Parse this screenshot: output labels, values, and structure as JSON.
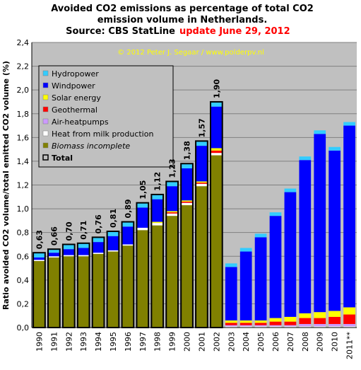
{
  "chart_data": {
    "type": "stacked-bar",
    "title_lines": [
      "Avoided CO2 emissions as percentage of total CO2",
      "emission volume in Netherlands."
    ],
    "source": "Source: CBS StatLine",
    "update": "update June 29, 2012",
    "watermark": "© 2012 Peter J. Segaar / www.polderpv.nl",
    "y_label": "Ratio avoided CO2 volume/total emitted CO2 volume (%)",
    "categories": [
      "1990",
      "1991",
      "1992",
      "1993",
      "1994",
      "1995",
      "1996",
      "1997",
      "1998",
      "1999",
      "2000",
      "2001",
      "2002",
      "2003",
      "2004",
      "2005",
      "2006",
      "2007",
      "2008",
      "2009",
      "2010",
      "2011**"
    ],
    "ylim": [
      0,
      2.4
    ],
    "yticks": [
      {
        "value": 0,
        "label": "0,0"
      },
      {
        "value": 0.2,
        "label": "0,2"
      },
      {
        "value": 0.4,
        "label": "0,4"
      },
      {
        "value": 0.6,
        "label": "0,6"
      },
      {
        "value": 0.8,
        "label": "0,8"
      },
      {
        "value": 1,
        "label": "1,0"
      },
      {
        "value": 1.2,
        "label": "1,2"
      },
      {
        "value": 1.4,
        "label": "1,4"
      },
      {
        "value": 1.6,
        "label": "1,6"
      },
      {
        "value": 1.8,
        "label": "1,8"
      },
      {
        "value": 2,
        "label": "2,0"
      },
      {
        "value": 2.2,
        "label": "2,2"
      },
      {
        "value": 2.4,
        "label": "2,4"
      }
    ],
    "grid": true,
    "series": [
      {
        "name": "Biomass incomplete",
        "color": "#808000",
        "values": [
          0.56,
          0.59,
          0.6,
          0.6,
          0.62,
          0.64,
          0.69,
          0.82,
          0.86,
          0.94,
          1.03,
          1.19,
          1.45,
          0,
          0,
          0,
          0,
          0,
          0,
          0,
          0,
          0
        ]
      },
      {
        "name": "Heat from milk production",
        "color": "#ffffff",
        "values": [
          0.01,
          0.01,
          0.01,
          0.01,
          0.01,
          0.01,
          0.01,
          0.02,
          0.02,
          0.02,
          0.02,
          0.02,
          0.02,
          0.01,
          0.01,
          0.01,
          0.01,
          0.01,
          0.01,
          0.01,
          0.01,
          0.01
        ]
      },
      {
        "name": "Air-heatpumps",
        "color": "#cc99ff",
        "values": [
          0,
          0,
          0,
          0,
          0,
          0,
          0,
          0,
          0,
          0,
          0,
          0,
          0,
          0.01,
          0.01,
          0.01,
          0.01,
          0.01,
          0.02,
          0.02,
          0.02,
          0.02
        ]
      },
      {
        "name": "Geothermal",
        "color": "#ff0000",
        "values": [
          0,
          0,
          0,
          0,
          0,
          0,
          0,
          0,
          0,
          0.01,
          0.01,
          0.01,
          0.02,
          0.02,
          0.02,
          0.02,
          0.03,
          0.03,
          0.05,
          0.05,
          0.06,
          0.08
        ]
      },
      {
        "name": "Solar energy",
        "color": "#ffff00",
        "values": [
          0,
          0,
          0,
          0,
          0,
          0,
          0,
          0,
          0.01,
          0.01,
          0.01,
          0.01,
          0.02,
          0.02,
          0.02,
          0.02,
          0.03,
          0.04,
          0.04,
          0.05,
          0.05,
          0.06
        ]
      },
      {
        "name": "Windpower",
        "color": "#0000ff",
        "values": [
          0.02,
          0.03,
          0.05,
          0.06,
          0.09,
          0.12,
          0.15,
          0.17,
          0.19,
          0.21,
          0.27,
          0.3,
          0.35,
          0.45,
          0.58,
          0.7,
          0.86,
          1.05,
          1.29,
          1.5,
          1.35,
          1.53
        ]
      },
      {
        "name": "Hydropower",
        "color": "#33ccff",
        "values": [
          0.04,
          0.03,
          0.04,
          0.04,
          0.04,
          0.04,
          0.04,
          0.04,
          0.04,
          0.04,
          0.04,
          0.04,
          0.04,
          0.03,
          0.03,
          0.03,
          0.03,
          0.03,
          0.03,
          0.03,
          0.03,
          0.03
        ]
      }
    ],
    "totals": {
      "name": "Total",
      "values": [
        0.63,
        0.66,
        0.7,
        0.71,
        0.76,
        0.81,
        0.89,
        1.05,
        1.12,
        1.23,
        1.38,
        1.57,
        1.9,
        null,
        null,
        null,
        null,
        null,
        null,
        null,
        null,
        null
      ],
      "value_labels": [
        "0,63",
        "0,66",
        "0,70",
        "0,71",
        "0,76",
        "0,81",
        "0,89",
        "1,05",
        "1,12",
        "1,23",
        "1,38",
        "1,57",
        "1,90",
        null,
        null,
        null,
        null,
        null,
        null,
        null,
        null,
        null
      ]
    }
  }
}
